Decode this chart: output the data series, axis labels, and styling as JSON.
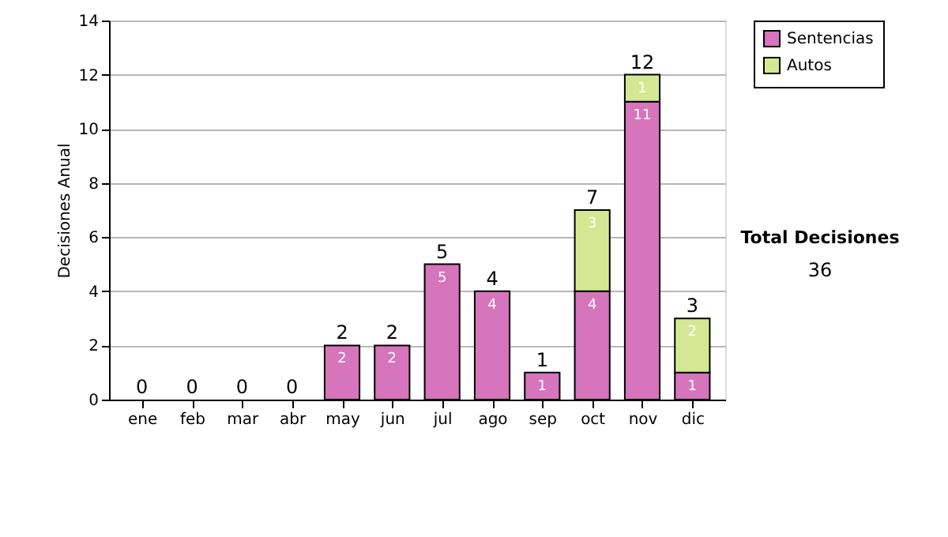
{
  "chart_data": {
    "type": "bar",
    "stacked": true,
    "ylabel": "Decisiones Anual",
    "categories": [
      "ene",
      "feb",
      "mar",
      "abr",
      "may",
      "jun",
      "jul",
      "ago",
      "sep",
      "oct",
      "nov",
      "dic"
    ],
    "series": [
      {
        "name": "Sentencias",
        "color": "#d674bc",
        "values": [
          0,
          0,
          0,
          0,
          2,
          2,
          5,
          4,
          1,
          4,
          11,
          1
        ],
        "value_labels": [
          null,
          null,
          null,
          null,
          "2",
          "2",
          "5",
          "4",
          "1",
          "4",
          "11",
          "1"
        ]
      },
      {
        "name": "Autos",
        "color": "#d4e894",
        "values": [
          0,
          0,
          0,
          0,
          0,
          0,
          0,
          0,
          0,
          3,
          1,
          2
        ],
        "value_labels": [
          null,
          null,
          null,
          null,
          null,
          null,
          null,
          null,
          null,
          "3",
          "1",
          "2"
        ]
      }
    ],
    "totals": [
      "0",
      "0",
      "0",
      "0",
      "2",
      "2",
      "5",
      "4",
      "1",
      "7",
      "12",
      "3"
    ],
    "ylim": [
      0,
      14
    ],
    "yticks": [
      0,
      2,
      4,
      6,
      8,
      10,
      12,
      14
    ],
    "grid": "y",
    "legend": "right",
    "annotations": [
      "Total Decisiones",
      "36"
    ]
  }
}
